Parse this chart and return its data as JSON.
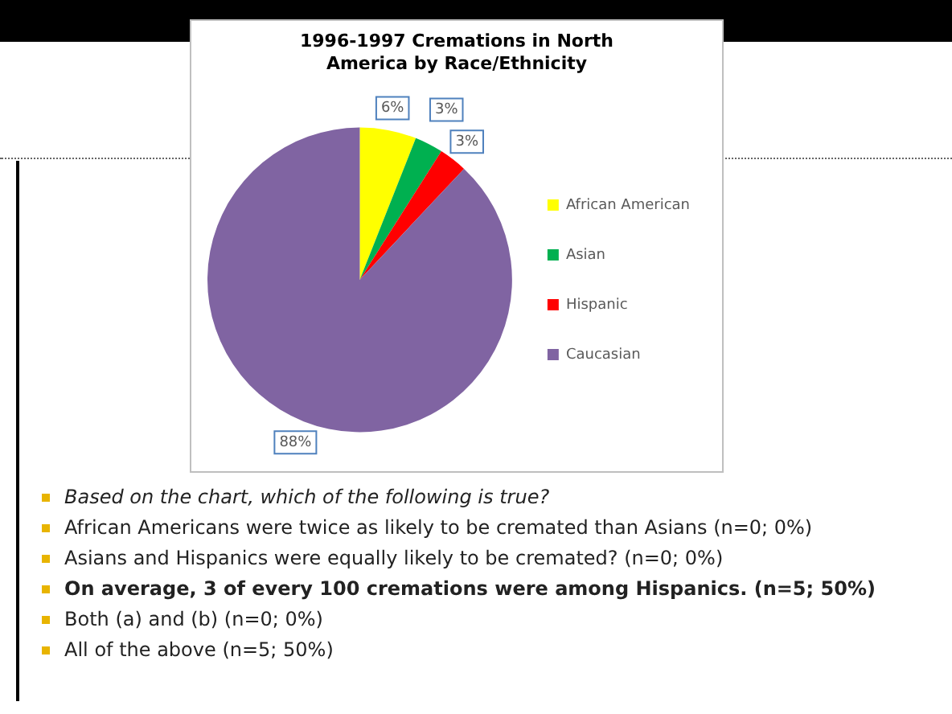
{
  "chart_data": {
    "type": "pie",
    "title": "1996-1997 Cremations in North America by Race/Ethnicity",
    "categories": [
      "African American",
      "Asian",
      "Hispanic",
      "Caucasian"
    ],
    "values": [
      6,
      3,
      3,
      88
    ],
    "colors": [
      "#ffff00",
      "#00b050",
      "#ff0000",
      "#8064a2"
    ],
    "value_labels": [
      "6%",
      "3%",
      "3%",
      "88%"
    ],
    "legend": "right",
    "annotations": [
      "Based on the chart, which of the following is true?",
      "African Americans were twice as likely to be cremated than Asians (n=0; 0%)",
      "Asians and Hispanics were equally likely to be cremated? (n=0; 0%)",
      "On average, 3 of every 100 cremations were among Hispanics. (n=5; 50%)",
      "Both (a) and (b) (n=0; 0%)",
      "All of the above (n=5; 50%)"
    ]
  }
}
